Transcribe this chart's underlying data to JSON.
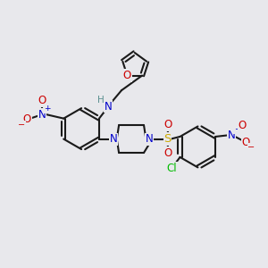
{
  "bg_color": "#e8e8ec",
  "bond_color": "#1a1a1a",
  "nitrogen_color": "#0000cc",
  "oxygen_color": "#cc0000",
  "sulfur_color": "#ccaa00",
  "chlorine_color": "#00bb00",
  "hydrogen_color": "#5a8f8f",
  "line_width": 1.5,
  "figsize": [
    3.0,
    3.0
  ],
  "dpi": 100,
  "xlim": [
    0,
    10
  ],
  "ylim": [
    0,
    10
  ]
}
